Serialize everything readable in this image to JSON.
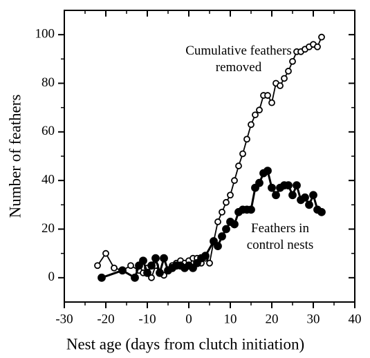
{
  "chart_data": {
    "type": "line",
    "xlabel": "Nest age (days from clutch initiation)",
    "ylabel": "Number of feathers",
    "xlim": [
      -30,
      40
    ],
    "ylim": [
      -10,
      110
    ],
    "xticks": [
      -30,
      -20,
      -10,
      0,
      10,
      20,
      30,
      40
    ],
    "yticks": [
      0,
      20,
      40,
      60,
      80,
      100
    ],
    "annotations": [
      {
        "lines": [
          "Cumulative feathers",
          "removed"
        ],
        "x": 12,
        "y": 93
      },
      {
        "lines": [
          "Feathers in",
          "control nests"
        ],
        "x": 22,
        "y": 20
      }
    ],
    "series": [
      {
        "marker": "open",
        "color": "#000000",
        "x": [
          -22,
          -20,
          -18,
          -16,
          -14,
          -12,
          -11,
          -10,
          -9,
          -8,
          -7,
          -6,
          -5,
          -4,
          -3,
          -2,
          -1,
          0,
          1,
          2,
          3,
          4,
          5,
          6,
          7,
          8,
          9,
          10,
          11,
          12,
          13,
          14,
          15,
          16,
          17,
          18,
          19,
          20,
          21,
          22,
          23,
          24,
          25,
          26,
          27,
          28,
          29,
          30,
          31,
          32
        ],
        "values": [
          5,
          10,
          4,
          3,
          5,
          3,
          2,
          4,
          0,
          5,
          2,
          1,
          3,
          5,
          6,
          7,
          6,
          7,
          8,
          8,
          6,
          8,
          6,
          15,
          23,
          27,
          31,
          34,
          40,
          46,
          51,
          57,
          63,
          67,
          69,
          75,
          75,
          72,
          80,
          79,
          82,
          85,
          89,
          93,
          93,
          94,
          95,
          96,
          95,
          99
        ]
      },
      {
        "marker": "filled",
        "color": "#000000",
        "x": [
          -21,
          -16,
          -13,
          -12,
          -11,
          -10,
          -9,
          -8,
          -7,
          -6,
          -5,
          -4,
          -3,
          -2,
          -1,
          0,
          1,
          2,
          3,
          4,
          6,
          7,
          8,
          9,
          10,
          11,
          12,
          13,
          14,
          15,
          16,
          17,
          18,
          19,
          20,
          21,
          22,
          23,
          24,
          25,
          26,
          27,
          28,
          29,
          30,
          31,
          32
        ],
        "values": [
          0,
          3,
          0,
          5,
          7,
          2,
          5,
          8,
          2,
          8,
          3,
          4,
          5,
          5,
          4,
          5,
          4,
          6,
          8,
          9,
          15,
          13,
          17,
          20,
          23,
          22,
          27,
          28,
          28,
          28,
          37,
          39,
          43,
          44,
          37,
          34,
          37,
          38,
          38,
          34,
          38,
          32,
          33,
          30,
          34,
          28,
          27
        ]
      }
    ]
  }
}
